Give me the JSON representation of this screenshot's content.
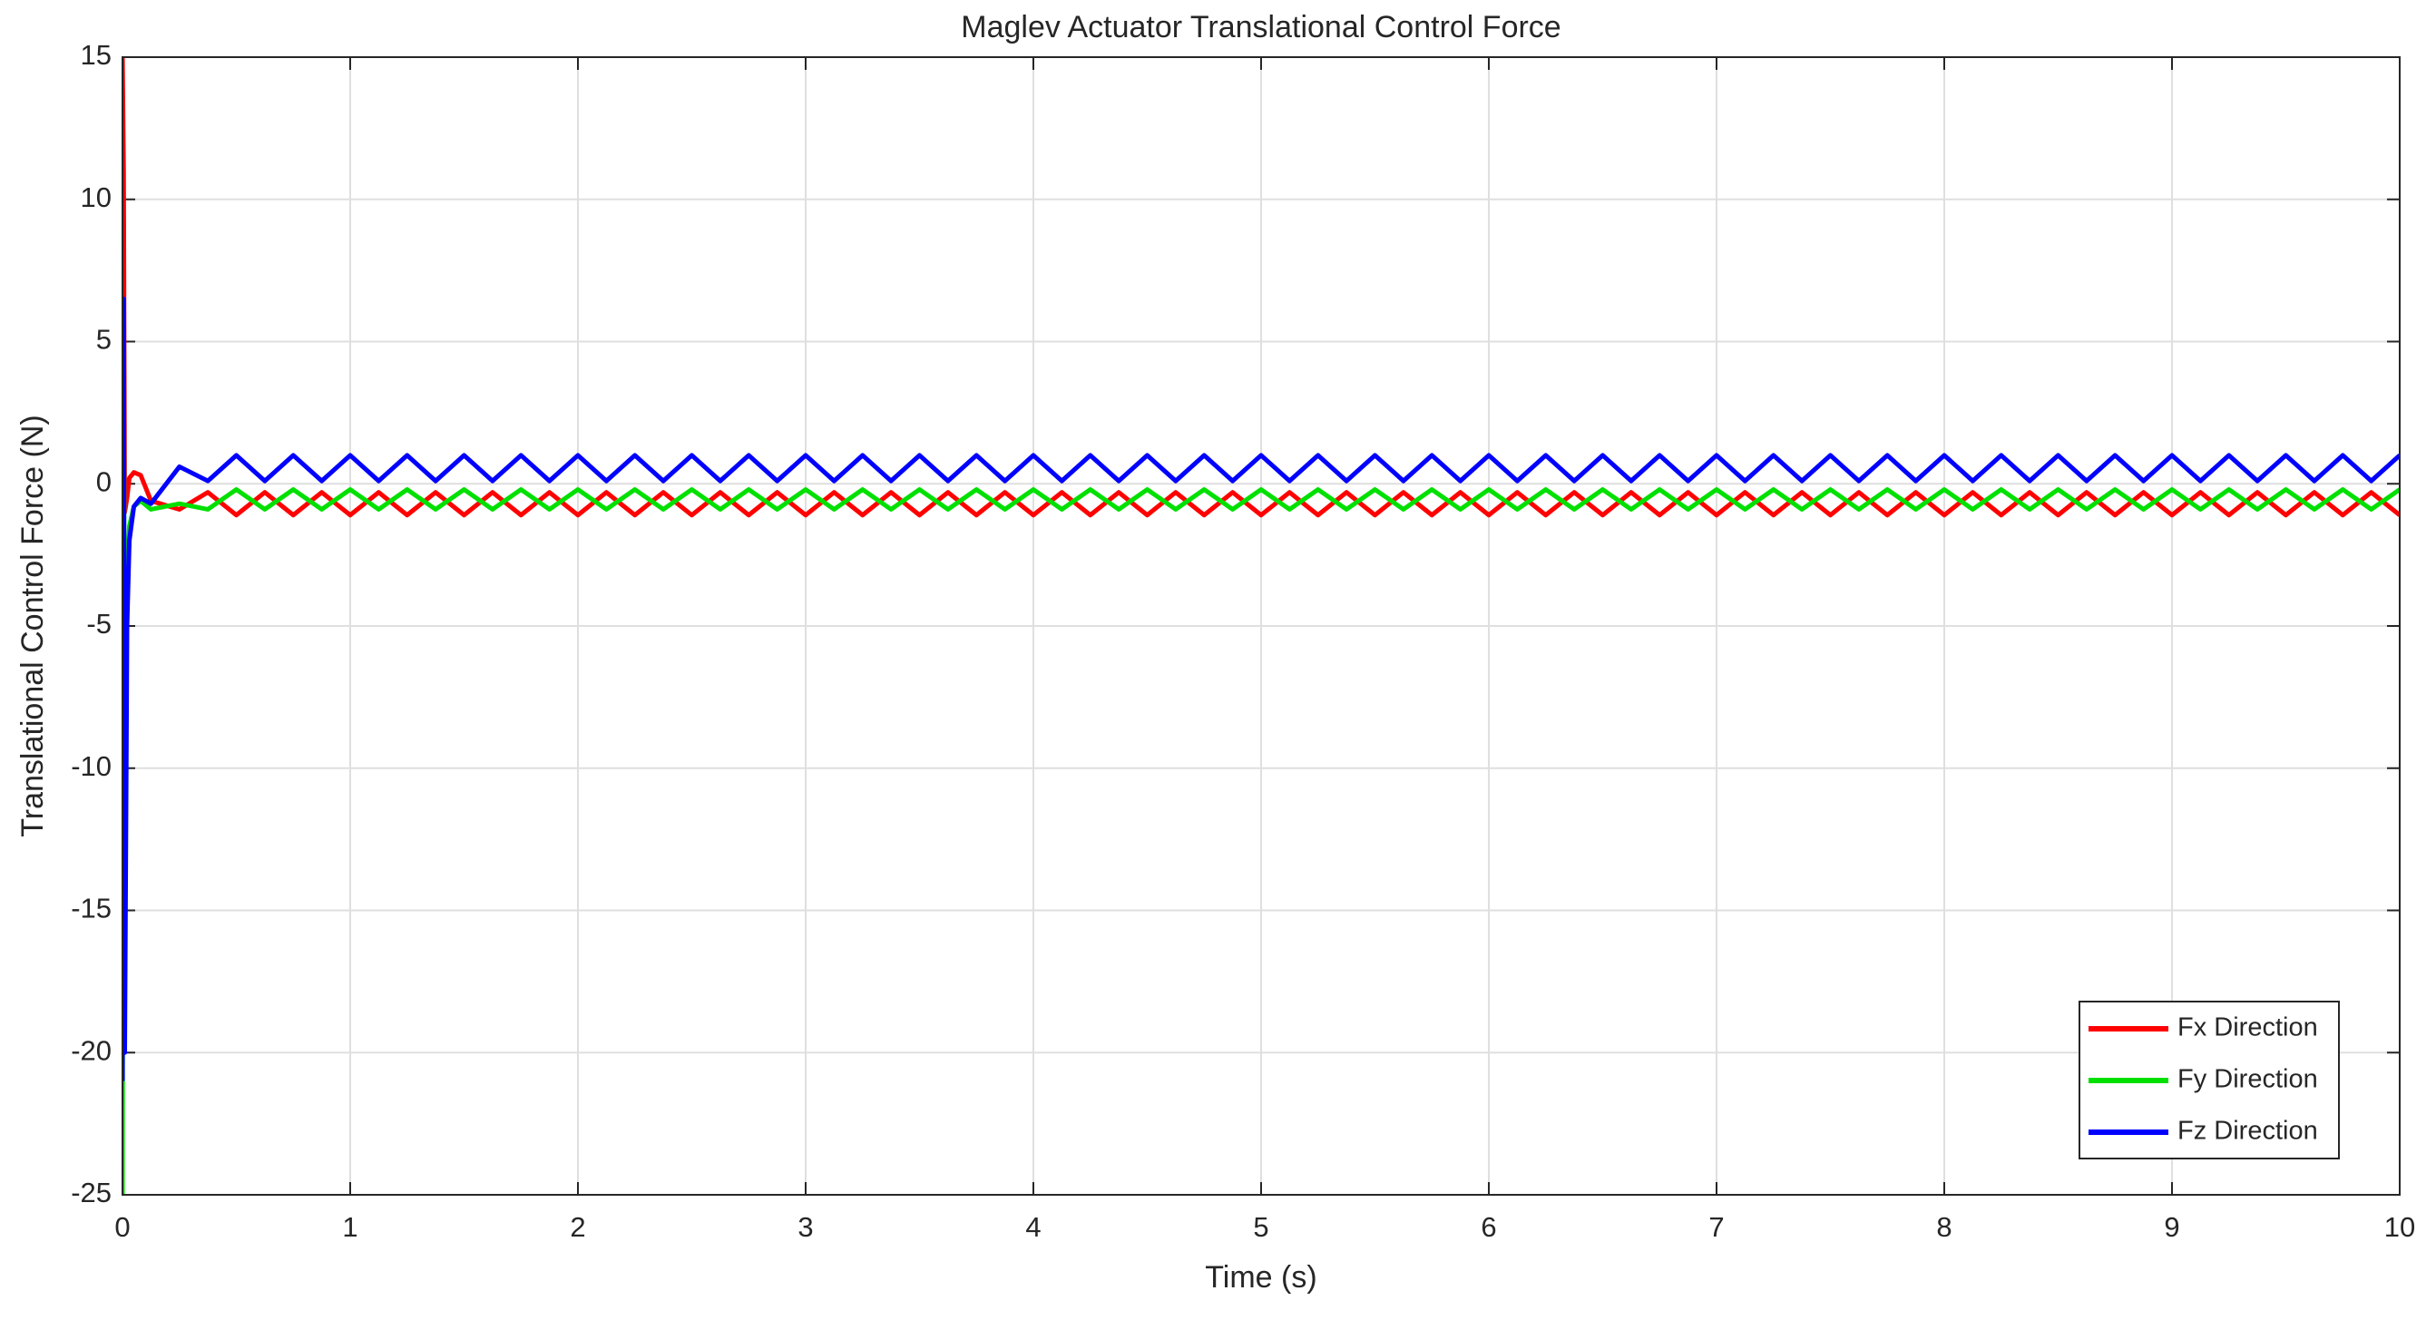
{
  "chart_data": {
    "type": "line",
    "title": "Maglev Actuator Translational Control Force",
    "x_label": "Time (s)",
    "y_label": "Translational Control Force (N)",
    "x": [
      0,
      0.005,
      0.01,
      0.02,
      0.03,
      0.05,
      0.08,
      0.125,
      0.25,
      0.375,
      0.5,
      0.625,
      0.75,
      0.875,
      1,
      1.125,
      1.25,
      1.375,
      1.5,
      1.625,
      1.75,
      1.875,
      2,
      2.125,
      2.25,
      2.375,
      2.5,
      2.625,
      2.75,
      2.875,
      3,
      3.125,
      3.25,
      3.375,
      3.5,
      3.625,
      3.75,
      3.875,
      4,
      4.125,
      4.25,
      4.375,
      4.5,
      4.625,
      4.75,
      4.875,
      5,
      5.125,
      5.25,
      5.375,
      5.5,
      5.625,
      5.75,
      5.875,
      6,
      6.125,
      6.25,
      6.375,
      6.5,
      6.625,
      6.75,
      6.875,
      7,
      7.125,
      7.25,
      7.375,
      7.5,
      7.625,
      7.75,
      7.875,
      8,
      8.125,
      8.25,
      8.375,
      8.5,
      8.625,
      8.75,
      8.875,
      9,
      9.125,
      9.25,
      9.375,
      9.5,
      9.625,
      9.75,
      9.875,
      10
    ],
    "series": [
      {
        "name": "Fx Direction",
        "color": "#ff0000",
        "values": [
          15,
          11,
          -1,
          -0.5,
          0.2,
          0.4,
          0.3,
          -0.6,
          -0.9,
          -0.3,
          -1.1,
          -0.3,
          -1.1,
          -0.3,
          -1.1,
          -0.3,
          -1.1,
          -0.3,
          -1.1,
          -0.3,
          -1.1,
          -0.3,
          -1.1,
          -0.3,
          -1.1,
          -0.3,
          -1.1,
          -0.3,
          -1.1,
          -0.3,
          -1.1,
          -0.3,
          -1.1,
          -0.3,
          -1.1,
          -0.3,
          -1.1,
          -0.3,
          -1.1,
          -0.3,
          -1.1,
          -0.3,
          -1.1,
          -0.3,
          -1.1,
          -0.3,
          -1.1,
          -0.3,
          -1.1,
          -0.3,
          -1.1,
          -0.3,
          -1.1,
          -0.3,
          -1.1,
          -0.3,
          -1.1,
          -0.3,
          -1.1,
          -0.3,
          -1.1,
          -0.3,
          -1.1,
          -0.3,
          -1.1,
          -0.3,
          -1.1,
          -0.3,
          -1.1,
          -0.3,
          -1.1,
          -0.3,
          -1.1,
          -0.3,
          -1.1,
          -0.3,
          -1.1,
          -0.3,
          -1.1,
          -0.3,
          -1.1,
          -0.3,
          -1.1,
          -0.3,
          -1.1,
          -0.3,
          -1.1
        ]
      },
      {
        "name": "Fy Direction",
        "color": "#00e000",
        "values": [
          -25,
          5,
          -10,
          -3,
          -1.5,
          -0.8,
          -0.6,
          -0.9,
          -0.7,
          -0.9,
          -0.2,
          -0.9,
          -0.2,
          -0.9,
          -0.2,
          -0.9,
          -0.2,
          -0.9,
          -0.2,
          -0.9,
          -0.2,
          -0.9,
          -0.2,
          -0.9,
          -0.2,
          -0.9,
          -0.2,
          -0.9,
          -0.2,
          -0.9,
          -0.2,
          -0.9,
          -0.2,
          -0.9,
          -0.2,
          -0.9,
          -0.2,
          -0.9,
          -0.2,
          -0.9,
          -0.2,
          -0.9,
          -0.2,
          -0.9,
          -0.2,
          -0.9,
          -0.2,
          -0.9,
          -0.2,
          -0.9,
          -0.2,
          -0.9,
          -0.2,
          -0.9,
          -0.2,
          -0.9,
          -0.2,
          -0.9,
          -0.2,
          -0.9,
          -0.2,
          -0.9,
          -0.2,
          -0.9,
          -0.2,
          -0.9,
          -0.2,
          -0.9,
          -0.2,
          -0.9,
          -0.2,
          -0.9,
          -0.2,
          -0.9,
          -0.2,
          -0.9,
          -0.2,
          -0.9,
          -0.2,
          -0.9,
          -0.2,
          -0.9,
          -0.2,
          -0.9,
          -0.2,
          -0.9,
          -0.2
        ]
      },
      {
        "name": "Fz Direction",
        "color": "#0000ff",
        "values": [
          -21,
          6.5,
          -20,
          -5,
          -2,
          -0.8,
          -0.5,
          -0.7,
          0.6,
          0.1,
          1,
          0.1,
          1,
          0.1,
          1,
          0.1,
          1,
          0.1,
          1,
          0.1,
          1,
          0.1,
          1,
          0.1,
          1,
          0.1,
          1,
          0.1,
          1,
          0.1,
          1,
          0.1,
          1,
          0.1,
          1,
          0.1,
          1,
          0.1,
          1,
          0.1,
          1,
          0.1,
          1,
          0.1,
          1,
          0.1,
          1,
          0.1,
          1,
          0.1,
          1,
          0.1,
          1,
          0.1,
          1,
          0.1,
          1,
          0.1,
          1,
          0.1,
          1,
          0.1,
          1,
          0.1,
          1,
          0.1,
          1,
          0.1,
          1,
          0.1,
          1,
          0.1,
          1,
          0.1,
          1,
          0.1,
          1,
          0.1,
          1,
          0.1,
          1,
          0.1,
          1,
          0.1,
          1,
          0.1,
          1
        ]
      }
    ],
    "xlim": [
      0,
      10
    ],
    "xticks": [
      0,
      1,
      2,
      3,
      4,
      5,
      6,
      7,
      8,
      9,
      10
    ],
    "ylim": [
      -25,
      15
    ],
    "yticks": [
      -25,
      -20,
      -15,
      -10,
      -5,
      0,
      5,
      10,
      15
    ],
    "grid": true,
    "legend": "lower right"
  }
}
